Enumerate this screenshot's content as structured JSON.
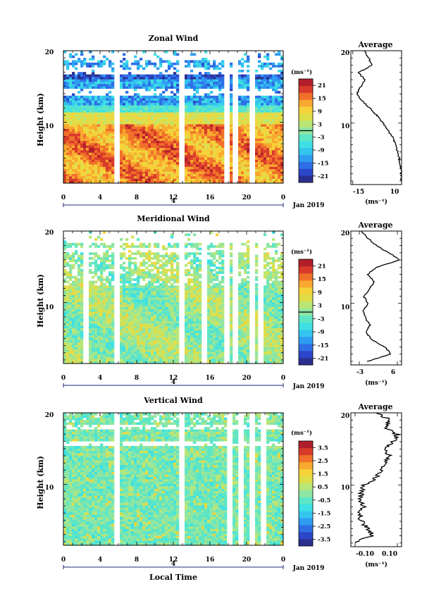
{
  "figure": {
    "xlabel_bottom": "Local Time",
    "date_label": "Jan 2019",
    "day_label": "4",
    "ylabel": "Height (km)"
  },
  "colors": {
    "palette": [
      "#2a2f8f",
      "#2c46c9",
      "#2f6fe6",
      "#2f9cf2",
      "#34c5ef",
      "#3ee0e3",
      "#5de6c6",
      "#8ee6a2",
      "#b9e676",
      "#dede4a",
      "#f5d23a",
      "#f8a92f",
      "#f0702a",
      "#d83a2a",
      "#b01e2a"
    ]
  },
  "chart_data": [
    {
      "type": "heatmap",
      "title": "Zonal Wind",
      "ylabel": "Height (km)",
      "x_ticks": [
        "0",
        "4",
        "8",
        "12",
        "16",
        "20",
        "0"
      ],
      "y_ticks": [
        "20",
        "10"
      ],
      "xlim": [
        0,
        24
      ],
      "ylim": [
        1.5,
        20
      ],
      "cbar_unit": "(ms⁻¹)",
      "cbar_ticks": [
        "21",
        "15",
        "9",
        "3",
        "-3",
        "-9",
        "-15",
        "-21"
      ],
      "cbar_range": [
        -24,
        24
      ],
      "gaps_hours": [
        5.8,
        12.8,
        17.8,
        18.6,
        20.6
      ],
      "profile": {
        "title": "Average",
        "xlabel": "(ms⁻¹)",
        "x_ticks": [
          "-15",
          "10"
        ],
        "xlim": [
          -16,
          10
        ],
        "y_ticks": [
          "20",
          "10"
        ],
        "heights": [
          2,
          3,
          4,
          5,
          6,
          7,
          8,
          9,
          10,
          11,
          12,
          13,
          14,
          15,
          16,
          17,
          18,
          19,
          20
        ],
        "values": [
          9.8,
          9.9,
          9.5,
          8.8,
          8,
          7,
          5.5,
          3,
          0.5,
          -2.5,
          -6,
          -10,
          -13,
          -11,
          -9,
          -12,
          -5,
          -7,
          -9
        ]
      }
    },
    {
      "type": "heatmap",
      "title": "Meridional Wind",
      "ylabel": "Height (km)",
      "x_ticks": [
        "0",
        "4",
        "8",
        "12",
        "16",
        "20",
        "0"
      ],
      "y_ticks": [
        "20",
        "10"
      ],
      "xlim": [
        0,
        24
      ],
      "ylim": [
        1.5,
        20
      ],
      "cbar_unit": "(ms⁻¹)",
      "cbar_ticks": [
        "21",
        "15",
        "9",
        "3",
        "-3",
        "-9",
        "-15",
        "-21"
      ],
      "cbar_range": [
        -24,
        24
      ],
      "gaps_hours": [
        2.4,
        5.8,
        12.8,
        15.2,
        17.8,
        18.6,
        20.6,
        21.3
      ],
      "profile": {
        "title": "Average",
        "xlabel": "(ms⁻¹)",
        "x_ticks": [
          "-3",
          "6"
        ],
        "xlim": [
          -5,
          7
        ],
        "y_ticks": [
          "20",
          "10"
        ],
        "heights": [
          2,
          3,
          4,
          5,
          6,
          7,
          8,
          9,
          10,
          11,
          12,
          13,
          14,
          15,
          16,
          17,
          18,
          19,
          20
        ],
        "values": [
          -1,
          4.5,
          3,
          0,
          -1.5,
          -0.5,
          -1.5,
          -2,
          -1,
          -2,
          -0.5,
          0.5,
          -1,
          1,
          6.5,
          4,
          1,
          -1,
          -2.5
        ]
      }
    },
    {
      "type": "heatmap",
      "title": "Vertical Wind",
      "ylabel": "Height (km)",
      "x_ticks": [
        "0",
        "4",
        "8",
        "12",
        "16",
        "20",
        "0"
      ],
      "y_ticks": [
        "20",
        "10"
      ],
      "xlim": [
        0,
        24
      ],
      "ylim": [
        1.5,
        20
      ],
      "cbar_unit": "(ms⁻¹)",
      "cbar_ticks": [
        "3.5",
        "2.5",
        "1.5",
        "0.5",
        "-0.5",
        "-1.5",
        "-2.5",
        "-3.5"
      ],
      "cbar_range": [
        -4,
        4
      ],
      "gaps_hours": [
        5.8,
        12.8,
        18.0,
        19.2,
        20.6,
        21.6
      ],
      "profile": {
        "title": "Average",
        "xlabel": "(ms⁻¹)",
        "x_ticks": [
          "-0.10",
          "0.10"
        ],
        "xlim": [
          -0.12,
          0.12
        ],
        "y_ticks": [
          "20",
          "10"
        ],
        "heights": [
          2,
          3,
          4,
          5,
          6,
          7,
          8,
          9,
          10,
          11,
          12,
          13,
          14,
          15,
          16,
          17,
          18,
          19,
          20
        ],
        "values": [
          -0.11,
          -0.02,
          -0.04,
          -0.07,
          -0.08,
          -0.06,
          -0.08,
          -0.07,
          -0.06,
          0.0,
          0.02,
          0.05,
          0.06,
          0.04,
          0.08,
          0.1,
          0.04,
          0.07,
          0.0
        ]
      }
    }
  ]
}
